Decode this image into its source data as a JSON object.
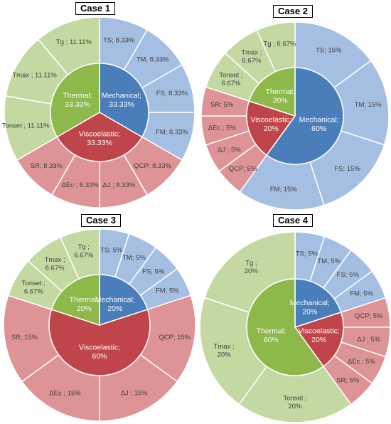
{
  "colors": {
    "mechanical_inner": "#4A7EBB",
    "mechanical_outer": "#A5BFE3",
    "viscoelastic_inner": "#C0454A",
    "viscoelastic_outer": "#DE9396",
    "thermal_inner": "#8DB84A",
    "thermal_outer": "#C4D9A1",
    "inner_text": "#FFFFFF",
    "outer_text": "#404040",
    "separator": "#FFFFFF"
  },
  "chart_data": [
    {
      "type": "pie",
      "title": "Case 1",
      "inner": [
        {
          "group": "mechanical",
          "label": "Mechanical;\n33.33%",
          "value": 33.33
        },
        {
          "group": "viscoelastic",
          "label": "Viscoelastic;\n33.33%",
          "value": 33.33
        },
        {
          "group": "thermal",
          "label": "Thermal;\n33.33%",
          "value": 33.33
        }
      ],
      "outer": [
        {
          "group": "mechanical",
          "label": "TS; 8.33%",
          "value": 8.33
        },
        {
          "group": "mechanical",
          "label": "TM; 8.33%",
          "value": 8.33
        },
        {
          "group": "mechanical",
          "label": "FS; 8.33%",
          "value": 8.33
        },
        {
          "group": "mechanical",
          "label": "FM; 8.33%",
          "value": 8.33
        },
        {
          "group": "viscoelastic",
          "label": "QCP; 8.33%",
          "value": 8.33
        },
        {
          "group": "viscoelastic",
          "label": "ΔJ ; 8.33%",
          "value": 8.33
        },
        {
          "group": "viscoelastic",
          "label": "ΔEc ; 8.33%",
          "value": 8.33
        },
        {
          "group": "viscoelastic",
          "label": "SR; 8.33%",
          "value": 8.33
        },
        {
          "group": "thermal",
          "label": "Tonset ; 11.11%",
          "value": 11.11
        },
        {
          "group": "thermal",
          "label": "Tmax ; 11.11%",
          "value": 11.11
        },
        {
          "group": "thermal",
          "label": "Tg ; 11.11%",
          "value": 11.11
        }
      ]
    },
    {
      "type": "pie",
      "title": "Case 2",
      "inner": [
        {
          "group": "mechanical",
          "label": "Mechanical;\n60%",
          "value": 60
        },
        {
          "group": "viscoelastic",
          "label": "Viscoelastic;\n20%",
          "value": 20
        },
        {
          "group": "thermal",
          "label": "Thermal;\n20%",
          "value": 20
        }
      ],
      "outer": [
        {
          "group": "mechanical",
          "label": "TS; 15%",
          "value": 15
        },
        {
          "group": "mechanical",
          "label": "TM; 15%",
          "value": 15
        },
        {
          "group": "mechanical",
          "label": "FS; 15%",
          "value": 15
        },
        {
          "group": "mechanical",
          "label": "FM; 15%",
          "value": 15
        },
        {
          "group": "viscoelastic",
          "label": "QCP; 5%",
          "value": 5
        },
        {
          "group": "viscoelastic",
          "label": "ΔJ ; 5%",
          "value": 5
        },
        {
          "group": "viscoelastic",
          "label": "ΔEc ; 5%",
          "value": 5
        },
        {
          "group": "viscoelastic",
          "label": "SR; 5%",
          "value": 5
        },
        {
          "group": "thermal",
          "label": "Tonset ;\n6.67%",
          "value": 6.67
        },
        {
          "group": "thermal",
          "label": "Tmax ;\n6.67%",
          "value": 6.67
        },
        {
          "group": "thermal",
          "label": "Tg ; 6.67%",
          "value": 6.67
        }
      ]
    },
    {
      "type": "pie",
      "title": "Case 3",
      "inner": [
        {
          "group": "mechanical",
          "label": "Mechanical;\n20%",
          "value": 20
        },
        {
          "group": "viscoelastic",
          "label": "Viscoelastic;\n60%",
          "value": 60
        },
        {
          "group": "thermal",
          "label": "Thermal;\n20%",
          "value": 20
        }
      ],
      "outer": [
        {
          "group": "mechanical",
          "label": "TS; 5%",
          "value": 5
        },
        {
          "group": "mechanical",
          "label": "TM; 5%",
          "value": 5
        },
        {
          "group": "mechanical",
          "label": "FS; 5%",
          "value": 5
        },
        {
          "group": "mechanical",
          "label": "FM; 5%",
          "value": 5
        },
        {
          "group": "viscoelastic",
          "label": "QCP; 15%",
          "value": 15
        },
        {
          "group": "viscoelastic",
          "label": "ΔJ ; 15%",
          "value": 15
        },
        {
          "group": "viscoelastic",
          "label": "ΔEc ; 15%",
          "value": 15
        },
        {
          "group": "viscoelastic",
          "label": "SR; 15%",
          "value": 15
        },
        {
          "group": "thermal",
          "label": "Tonset ;\n6.67%",
          "value": 6.67
        },
        {
          "group": "thermal",
          "label": "Tmax ;\n6.67%",
          "value": 6.67
        },
        {
          "group": "thermal",
          "label": "Tg ;\n6.67%",
          "value": 6.67
        }
      ]
    },
    {
      "type": "pie",
      "title": "Case 4",
      "inner": [
        {
          "group": "mechanical",
          "label": "Mechanical;\n20%",
          "value": 20
        },
        {
          "group": "viscoelastic",
          "label": "Viscoelastic;\n20%",
          "value": 20
        },
        {
          "group": "thermal",
          "label": "Thermal;\n60%",
          "value": 60
        }
      ],
      "outer": [
        {
          "group": "mechanical",
          "label": "TS; 5%",
          "value": 5
        },
        {
          "group": "mechanical",
          "label": "TM; 5%",
          "value": 5
        },
        {
          "group": "mechanical",
          "label": "FS; 5%",
          "value": 5
        },
        {
          "group": "mechanical",
          "label": "FM; 5%",
          "value": 5
        },
        {
          "group": "viscoelastic",
          "label": "QCP; 5%",
          "value": 5
        },
        {
          "group": "viscoelastic",
          "label": "ΔJ ; 5%",
          "value": 5
        },
        {
          "group": "viscoelastic",
          "label": "ΔEc ; 5%",
          "value": 5
        },
        {
          "group": "viscoelastic",
          "label": "SR; 5%",
          "value": 5
        },
        {
          "group": "thermal",
          "label": "Tonset ;\n20%",
          "value": 20
        },
        {
          "group": "thermal",
          "label": "Tmax ;\n20%",
          "value": 20
        },
        {
          "group": "thermal",
          "label": "Tg ;\n20%",
          "value": 20
        }
      ]
    }
  ]
}
